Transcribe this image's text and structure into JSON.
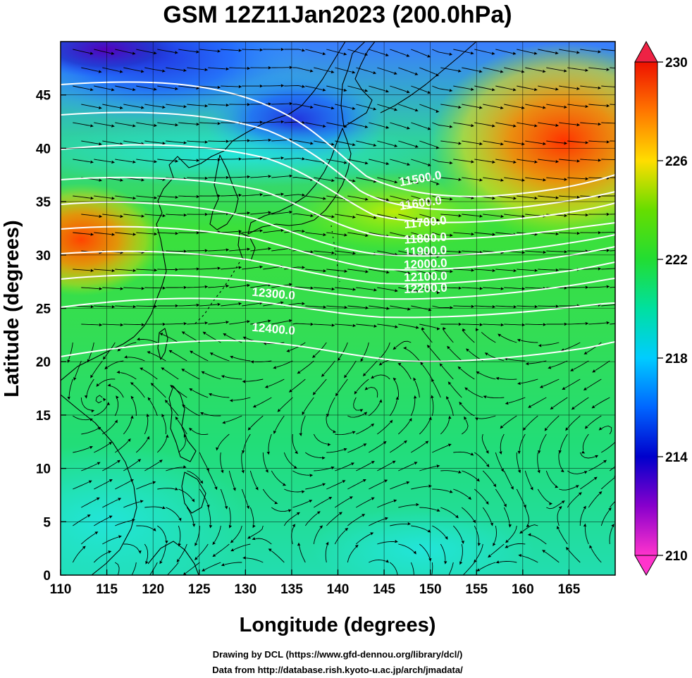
{
  "title": "GSM 12Z11Jan2023 (200.0hPa)",
  "xlabel": "Longitude (degrees)",
  "ylabel": "Latitude  (degrees)",
  "credits": [
    "Drawing by DCL (https://www.gfd-dennou.org/library/dcl/)",
    "Data from http://database.rish.kyoto-u.ac.jp/arch/jmadata/"
  ],
  "map": {
    "lon_range": [
      110,
      170
    ],
    "lat_range": [
      0,
      50
    ],
    "lon_ticks": [
      110,
      115,
      120,
      125,
      130,
      135,
      140,
      145,
      150,
      155,
      160,
      165
    ],
    "lat_ticks": [
      0,
      5,
      10,
      15,
      20,
      25,
      30,
      35,
      40,
      45
    ],
    "grid": true,
    "field": "temperature shaded, geopotential height contours, wind streamlines"
  },
  "colorbar": {
    "ticks": [
      210,
      214,
      218,
      222,
      226,
      230
    ],
    "range": [
      210,
      230
    ]
  },
  "contours": {
    "color": "#ffffff",
    "labels": [
      {
        "text": "11500.0",
        "lon": 149.0,
        "lat": 36.8,
        "angle": -10
      },
      {
        "text": "11600.0",
        "lon": 149.0,
        "lat": 34.5,
        "angle": -8
      },
      {
        "text": "11700.0",
        "lon": 149.5,
        "lat": 32.7,
        "angle": -6
      },
      {
        "text": "11800.0",
        "lon": 149.5,
        "lat": 31.2,
        "angle": -4
      },
      {
        "text": "11900.0",
        "lon": 149.5,
        "lat": 30.0,
        "angle": -3
      },
      {
        "text": "12000.0",
        "lon": 149.5,
        "lat": 28.8,
        "angle": -3
      },
      {
        "text": "12100.0",
        "lon": 149.5,
        "lat": 27.6,
        "angle": -2
      },
      {
        "text": "12200.0",
        "lon": 149.5,
        "lat": 26.5,
        "angle": -2
      },
      {
        "text": "12300.0",
        "lon": 133.0,
        "lat": 26.0,
        "angle": 5
      },
      {
        "text": "12400.0",
        "lon": 133.0,
        "lat": 22.7,
        "angle": 5
      }
    ]
  }
}
